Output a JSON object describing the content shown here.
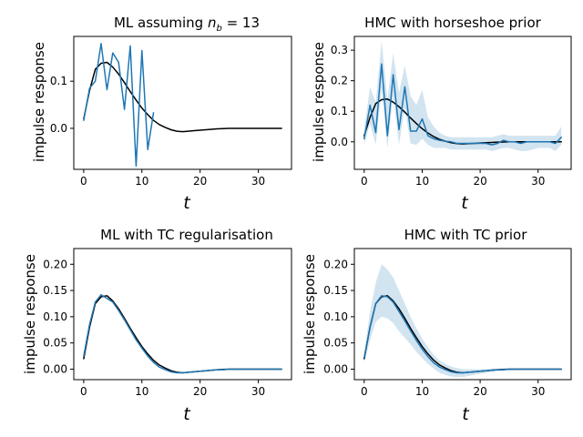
{
  "chart_data": [
    {
      "type": "line",
      "title": "ML assuming n_b = 13",
      "title_main": "ML assuming ",
      "title_var": "n",
      "title_sub": "b",
      "title_rest": " = 13",
      "xlabel": "t",
      "ylabel": "impulse response",
      "xlim": [
        -1.7,
        35.7
      ],
      "ylim": [
        -0.087,
        0.195
      ],
      "xticks": [
        0,
        10,
        20,
        30
      ],
      "yticks": [
        0.0,
        0.1
      ],
      "ytick_labels": [
        "0.0",
        "0.1"
      ],
      "grid": false,
      "series": [
        {
          "role": "true",
          "color": "#000000",
          "x": [
            0,
            1,
            2,
            3,
            4,
            5,
            6,
            7,
            8,
            9,
            10,
            11,
            12,
            13,
            14,
            15,
            16,
            17,
            18,
            19,
            20,
            21,
            22,
            23,
            24,
            25,
            26,
            27,
            28,
            29,
            30,
            31,
            32,
            33,
            34
          ],
          "y": [
            0.02,
            0.08,
            0.125,
            0.138,
            0.14,
            0.13,
            0.115,
            0.097,
            0.078,
            0.06,
            0.043,
            0.029,
            0.017,
            0.008,
            0.002,
            -0.003,
            -0.006,
            -0.007,
            -0.006,
            -0.005,
            -0.004,
            -0.003,
            -0.002,
            -0.001,
            -0.0005,
            0,
            0,
            0,
            0,
            0,
            0,
            0,
            0,
            0,
            0
          ]
        },
        {
          "role": "estimate",
          "color": "#1f77b4",
          "x": [
            0,
            1,
            2,
            3,
            4,
            5,
            6,
            7,
            8,
            9,
            10,
            11,
            12
          ],
          "y": [
            0.017,
            0.085,
            0.1,
            0.18,
            0.082,
            0.16,
            0.14,
            0.04,
            0.175,
            -0.08,
            0.165,
            -0.045,
            0.033
          ]
        }
      ]
    },
    {
      "type": "line",
      "title": "HMC with horseshoe prior",
      "xlabel": "t",
      "ylabel": "impulse response",
      "xlim": [
        -1.7,
        35.7
      ],
      "ylim": [
        -0.09,
        0.345
      ],
      "xticks": [
        0,
        10,
        20,
        30
      ],
      "yticks": [
        0.0,
        0.1,
        0.2,
        0.3
      ],
      "ytick_labels": [
        "0.0",
        "0.1",
        "0.2",
        "0.3"
      ],
      "grid": false,
      "series": [
        {
          "role": "true",
          "color": "#000000",
          "x": [
            0,
            1,
            2,
            3,
            4,
            5,
            6,
            7,
            8,
            9,
            10,
            11,
            12,
            13,
            14,
            15,
            16,
            17,
            18,
            19,
            20,
            21,
            22,
            23,
            24,
            25,
            26,
            27,
            28,
            29,
            30,
            31,
            32,
            33,
            34
          ],
          "y": [
            0.02,
            0.08,
            0.125,
            0.138,
            0.14,
            0.13,
            0.115,
            0.097,
            0.078,
            0.06,
            0.043,
            0.029,
            0.017,
            0.008,
            0.002,
            -0.003,
            -0.006,
            -0.007,
            -0.006,
            -0.005,
            -0.004,
            -0.003,
            -0.002,
            -0.001,
            -0.0005,
            0,
            0,
            0,
            0,
            0,
            0,
            0,
            0,
            0,
            0
          ]
        },
        {
          "role": "estimate",
          "color": "#1f77b4",
          "x": [
            0,
            1,
            2,
            3,
            4,
            5,
            6,
            7,
            8,
            9,
            10,
            11,
            12,
            13,
            14,
            15,
            16,
            17,
            18,
            19,
            20,
            21,
            22,
            23,
            24,
            25,
            26,
            27,
            28,
            29,
            30,
            31,
            32,
            33,
            34
          ],
          "y": [
            0.01,
            0.12,
            0.03,
            0.255,
            0.02,
            0.22,
            0.04,
            0.18,
            0.035,
            0.035,
            0.075,
            0.02,
            0.01,
            0.005,
            0.002,
            0.0,
            -0.005,
            -0.005,
            -0.005,
            -0.005,
            -0.005,
            -0.005,
            -0.01,
            -0.005,
            0.005,
            0.0,
            0.0,
            -0.005,
            0.0,
            0.0,
            0.0,
            0.0,
            0.0,
            -0.005,
            0.015
          ],
          "band_upper": [
            0.04,
            0.18,
            0.13,
            0.33,
            0.14,
            0.29,
            0.16,
            0.25,
            0.15,
            0.12,
            0.17,
            0.08,
            0.05,
            0.03,
            0.02,
            0.015,
            0.015,
            0.015,
            0.015,
            0.015,
            0.015,
            0.015,
            0.015,
            0.02,
            0.025,
            0.02,
            0.02,
            0.02,
            0.02,
            0.02,
            0.02,
            0.02,
            0.02,
            0.02,
            0.05
          ],
          "band_lower": [
            -0.01,
            0.06,
            -0.01,
            0.17,
            -0.02,
            0.15,
            -0.01,
            0.11,
            -0.005,
            -0.01,
            0.01,
            -0.01,
            -0.02,
            -0.02,
            -0.02,
            -0.025,
            -0.025,
            -0.025,
            -0.025,
            -0.025,
            -0.025,
            -0.025,
            -0.03,
            -0.025,
            -0.02,
            -0.02,
            -0.025,
            -0.03,
            -0.03,
            -0.025,
            -0.02,
            -0.02,
            -0.02,
            -0.03,
            -0.01
          ]
        }
      ]
    },
    {
      "type": "line",
      "title": "ML with TC regularisation",
      "xlabel": "t",
      "ylabel": "impulse response",
      "xlim": [
        -1.7,
        35.7
      ],
      "ylim": [
        -0.02,
        0.23
      ],
      "xticks": [
        0,
        10,
        20,
        30
      ],
      "yticks": [
        0.0,
        0.05,
        0.1,
        0.15,
        0.2
      ],
      "ytick_labels": [
        "0.00",
        "0.05",
        "0.10",
        "0.15",
        "0.20"
      ],
      "grid": false,
      "series": [
        {
          "role": "true",
          "color": "#000000",
          "x": [
            0,
            1,
            2,
            3,
            4,
            5,
            6,
            7,
            8,
            9,
            10,
            11,
            12,
            13,
            14,
            15,
            16,
            17,
            18,
            19,
            20,
            21,
            22,
            23,
            24,
            25,
            26,
            27,
            28,
            29,
            30,
            31,
            32,
            33,
            34
          ],
          "y": [
            0.02,
            0.08,
            0.125,
            0.138,
            0.14,
            0.13,
            0.115,
            0.097,
            0.078,
            0.06,
            0.043,
            0.029,
            0.017,
            0.008,
            0.002,
            -0.003,
            -0.006,
            -0.007,
            -0.006,
            -0.005,
            -0.004,
            -0.003,
            -0.002,
            -0.001,
            -0.0005,
            0,
            0,
            0,
            0,
            0,
            0,
            0,
            0,
            0,
            0
          ]
        },
        {
          "role": "estimate",
          "color": "#1f77b4",
          "x": [
            0,
            1,
            2,
            3,
            4,
            5,
            6,
            7,
            8,
            9,
            10,
            11,
            12,
            13,
            14,
            15,
            16,
            17,
            18,
            19,
            20,
            21,
            22,
            23,
            24,
            25,
            26,
            27,
            28,
            29,
            30,
            31,
            32,
            33,
            34
          ],
          "y": [
            0.025,
            0.085,
            0.128,
            0.142,
            0.135,
            0.128,
            0.112,
            0.094,
            0.075,
            0.056,
            0.04,
            0.025,
            0.013,
            0.004,
            -0.001,
            -0.005,
            -0.007,
            -0.007,
            -0.006,
            -0.005,
            -0.004,
            -0.003,
            -0.002,
            -0.001,
            -0.001,
            0,
            0,
            0,
            0,
            0,
            0,
            0,
            0,
            0,
            0
          ]
        }
      ]
    },
    {
      "type": "line",
      "title": "HMC with TC prior",
      "xlabel": "t",
      "ylabel": "impulse response",
      "xlim": [
        -1.7,
        35.7
      ],
      "ylim": [
        -0.02,
        0.23
      ],
      "xticks": [
        0,
        10,
        20,
        30
      ],
      "yticks": [
        0.0,
        0.05,
        0.1,
        0.15,
        0.2
      ],
      "ytick_labels": [
        "0.00",
        "0.05",
        "0.10",
        "0.15",
        "0.20"
      ],
      "grid": false,
      "series": [
        {
          "role": "true",
          "color": "#000000",
          "x": [
            0,
            1,
            2,
            3,
            4,
            5,
            6,
            7,
            8,
            9,
            10,
            11,
            12,
            13,
            14,
            15,
            16,
            17,
            18,
            19,
            20,
            21,
            22,
            23,
            24,
            25,
            26,
            27,
            28,
            29,
            30,
            31,
            32,
            33,
            34
          ],
          "y": [
            0.02,
            0.08,
            0.125,
            0.138,
            0.14,
            0.13,
            0.115,
            0.097,
            0.078,
            0.06,
            0.043,
            0.029,
            0.017,
            0.008,
            0.002,
            -0.003,
            -0.006,
            -0.007,
            -0.006,
            -0.005,
            -0.004,
            -0.003,
            -0.002,
            -0.001,
            -0.0005,
            0,
            0,
            0,
            0,
            0,
            0,
            0,
            0,
            0,
            0
          ]
        },
        {
          "role": "estimate",
          "color": "#1f77b4",
          "x": [
            0,
            1,
            2,
            3,
            4,
            5,
            6,
            7,
            8,
            9,
            10,
            11,
            12,
            13,
            14,
            15,
            16,
            17,
            18,
            19,
            20,
            21,
            22,
            23,
            24,
            25,
            26,
            27,
            28,
            29,
            30,
            31,
            32,
            33,
            34
          ],
          "y": [
            0.022,
            0.08,
            0.125,
            0.14,
            0.138,
            0.128,
            0.11,
            0.092,
            0.073,
            0.055,
            0.038,
            0.024,
            0.012,
            0.004,
            -0.001,
            -0.005,
            -0.007,
            -0.007,
            -0.006,
            -0.005,
            -0.004,
            -0.003,
            -0.002,
            -0.001,
            -0.001,
            0,
            0,
            0,
            0,
            0,
            0,
            0,
            0,
            0,
            0
          ],
          "band_upper": [
            0.03,
            0.11,
            0.165,
            0.2,
            0.19,
            0.175,
            0.15,
            0.125,
            0.1,
            0.078,
            0.058,
            0.042,
            0.027,
            0.017,
            0.01,
            0.005,
            0.002,
            0.0,
            0.0,
            0.0,
            0.0,
            0.0,
            0.001,
            0.001,
            0.001,
            0.001,
            0.001,
            0.001,
            0.001,
            0.001,
            0.001,
            0.001,
            0.001,
            0.001,
            0.001
          ],
          "band_lower": [
            0.012,
            0.055,
            0.09,
            0.1,
            0.097,
            0.088,
            0.072,
            0.06,
            0.047,
            0.033,
            0.021,
            0.01,
            0.001,
            -0.007,
            -0.011,
            -0.014,
            -0.015,
            -0.015,
            -0.013,
            -0.011,
            -0.009,
            -0.007,
            -0.005,
            -0.004,
            -0.003,
            -0.002,
            -0.002,
            -0.001,
            -0.001,
            -0.001,
            -0.001,
            -0.001,
            -0.001,
            -0.001,
            -0.001
          ]
        }
      ]
    }
  ]
}
